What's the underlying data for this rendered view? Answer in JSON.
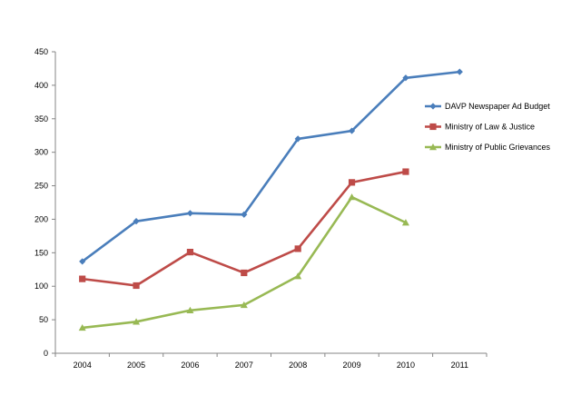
{
  "chart_data": {
    "type": "line",
    "categories": [
      "2004",
      "2005",
      "2006",
      "2007",
      "2008",
      "2009",
      "2010",
      "2011"
    ],
    "series": [
      {
        "name": "DAVP Newspaper Ad Budget",
        "color": "#4A7EBB",
        "marker": "diamond",
        "values": [
          137,
          197,
          209,
          207,
          320,
          332,
          411,
          420
        ]
      },
      {
        "name": "Ministry of Law & Justice",
        "color": "#BE4B48",
        "marker": "square",
        "values": [
          111,
          101,
          151,
          120,
          156,
          255,
          271,
          null
        ]
      },
      {
        "name": "Ministry of Public Grievances",
        "color": "#98B954",
        "marker": "triangle",
        "values": [
          38,
          47,
          64,
          72,
          115,
          233,
          195,
          null
        ]
      }
    ],
    "yticks": [
      "0",
      "50",
      "100",
      "150",
      "200",
      "250",
      "300",
      "350",
      "400",
      "450"
    ],
    "ylim": [
      0,
      450
    ],
    "grid": false,
    "legend_position": "right"
  }
}
